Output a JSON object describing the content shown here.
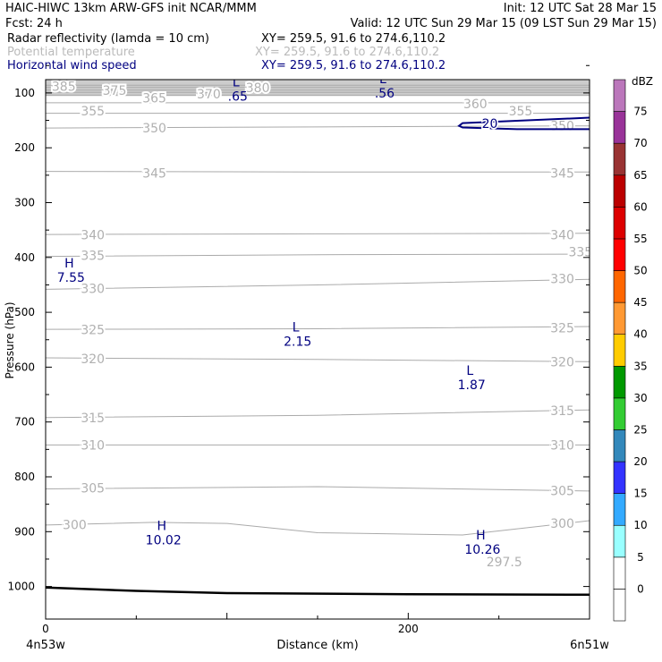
{
  "header": {
    "line1_left": "HAIC-HIWC 13km ARW-GFS init   NCAR/MMM",
    "line1_right": "Init: 12 UTC Sat 28 Mar 15",
    "line2_left": "Fcst:   24 h",
    "line2_right": "Valid: 12 UTC Sun 29 Mar 15 (09 LST Sun 29 Mar 15)",
    "field1_name": "Radar reflectivity (lamda = 10 cm)",
    "field1_xy": "XY= 259.5, 91.6 to 274.6,110.2",
    "field2_name": "Potential temperature",
    "field2_xy": "XY= 259.5, 91.6 to 274.6,110.2",
    "field3_name": "Horizontal wind speed",
    "field3_xy": "XY= 259.5, 91.6 to 274.6,110.2"
  },
  "colors": {
    "theta": "#aaaaaa",
    "theta_label": "#b0b0b0",
    "wind": "#000080",
    "ground": "#000000",
    "terrain_top": "#cccccc"
  },
  "chart_data": {
    "type": "cross-section",
    "xlabel": "Distance (km)",
    "ylabel": "Pressure (hPa)",
    "xlim": [
      0,
      300
    ],
    "ylim": [
      1045,
      0
    ],
    "x_ticks": [
      0,
      200
    ],
    "x_left_label": "4n53w",
    "x_right_label": "6n51w",
    "y_ticks": [
      100,
      200,
      300,
      400,
      500,
      600,
      700,
      800,
      900,
      1000
    ],
    "colorbar": {
      "unit": "dBZ",
      "levels": [
        0,
        5,
        10,
        15,
        20,
        25,
        30,
        35,
        40,
        45,
        50,
        55,
        60,
        65,
        70,
        75
      ],
      "colors": [
        "#ffffff",
        "#ffffff",
        "#99ffff",
        "#33aaff",
        "#3333ff",
        "#3388bb",
        "#33cc33",
        "#009900",
        "#ffcc00",
        "#ff9933",
        "#ff6600",
        "#ff0000",
        "#dd0000",
        "#bb0000",
        "#993333",
        "#993399",
        "#bb77bb"
      ]
    },
    "theta_contours": [
      {
        "theta": 385,
        "pts": [
          [
            0,
            86
          ],
          [
            300,
            86
          ]
        ]
      },
      {
        "theta": 380,
        "pts": [
          [
            0,
            90
          ],
          [
            300,
            90
          ]
        ]
      },
      {
        "theta": 375,
        "pts": [
          [
            0,
            95
          ],
          [
            300,
            95
          ]
        ]
      },
      {
        "theta": 370,
        "pts": [
          [
            0,
            99
          ],
          [
            300,
            99
          ]
        ]
      },
      {
        "theta": 365,
        "pts": [
          [
            0,
            104
          ],
          [
            300,
            104
          ]
        ]
      },
      {
        "theta": 360,
        "pts": [
          [
            0,
            118
          ],
          [
            300,
            118
          ]
        ]
      },
      {
        "theta": 355,
        "pts": [
          [
            0,
            137
          ],
          [
            300,
            137
          ]
        ]
      },
      {
        "theta": 350,
        "pts": [
          [
            0,
            164
          ],
          [
            150,
            162
          ],
          [
            300,
            160
          ]
        ]
      },
      {
        "theta": 345,
        "pts": [
          [
            0,
            243
          ],
          [
            150,
            244
          ],
          [
            300,
            244
          ]
        ]
      },
      {
        "theta": 340,
        "pts": [
          [
            0,
            358
          ],
          [
            150,
            357
          ],
          [
            300,
            356
          ]
        ]
      },
      {
        "theta": 335,
        "pts": [
          [
            0,
            398
          ],
          [
            150,
            395
          ],
          [
            300,
            394
          ]
        ]
      },
      {
        "theta": 330,
        "pts": [
          [
            0,
            458
          ],
          [
            150,
            450
          ],
          [
            300,
            440
          ]
        ]
      },
      {
        "theta": 325,
        "pts": [
          [
            0,
            531
          ],
          [
            150,
            530
          ],
          [
            300,
            526
          ]
        ]
      },
      {
        "theta": 320,
        "pts": [
          [
            0,
            583
          ],
          [
            150,
            586
          ],
          [
            300,
            590
          ]
        ]
      },
      {
        "theta": 315,
        "pts": [
          [
            0,
            692
          ],
          [
            150,
            688
          ],
          [
            300,
            678
          ]
        ]
      },
      {
        "theta": 310,
        "pts": [
          [
            0,
            742
          ],
          [
            150,
            742
          ],
          [
            300,
            742
          ]
        ]
      },
      {
        "theta": 305,
        "pts": [
          [
            0,
            822
          ],
          [
            150,
            818
          ],
          [
            300,
            826
          ]
        ]
      },
      {
        "theta": 300,
        "pts": [
          [
            0,
            888
          ],
          [
            60,
            883
          ],
          [
            100,
            885
          ],
          [
            150,
            902
          ],
          [
            230,
            906
          ],
          [
            300,
            880
          ]
        ]
      }
    ],
    "theta_labels": [
      {
        "text": "385",
        "x": 10,
        "y": 88
      },
      {
        "text": "375",
        "x": 38,
        "y": 95
      },
      {
        "text": "365",
        "x": 60,
        "y": 109
      },
      {
        "text": "370",
        "x": 90,
        "y": 102
      },
      {
        "text": "380",
        "x": 117,
        "y": 90
      },
      {
        "text": "360",
        "x": 237,
        "y": 120
      },
      {
        "text": "355",
        "x": 262,
        "y": 133
      },
      {
        "text": "355",
        "x": 26,
        "y": 133
      },
      {
        "text": "350",
        "x": 60,
        "y": 164
      },
      {
        "text": "350",
        "x": 285,
        "y": 160
      },
      {
        "text": "345",
        "x": 60,
        "y": 246
      },
      {
        "text": "345",
        "x": 285,
        "y": 246
      },
      {
        "text": "340",
        "x": 26,
        "y": 359
      },
      {
        "text": "340",
        "x": 285,
        "y": 359
      },
      {
        "text": "335",
        "x": 26,
        "y": 396
      },
      {
        "text": "335",
        "x": 295,
        "y": 390
      },
      {
        "text": "330",
        "x": 26,
        "y": 457
      },
      {
        "text": "330",
        "x": 285,
        "y": 439
      },
      {
        "text": "325",
        "x": 26,
        "y": 532
      },
      {
        "text": "325",
        "x": 285,
        "y": 528
      },
      {
        "text": "320",
        "x": 26,
        "y": 585
      },
      {
        "text": "320",
        "x": 285,
        "y": 590
      },
      {
        "text": "315",
        "x": 26,
        "y": 692
      },
      {
        "text": "315",
        "x": 285,
        "y": 679
      },
      {
        "text": "310",
        "x": 26,
        "y": 742
      },
      {
        "text": "310",
        "x": 285,
        "y": 742
      },
      {
        "text": "305",
        "x": 26,
        "y": 820
      },
      {
        "text": "305",
        "x": 285,
        "y": 825
      },
      {
        "text": "300",
        "x": 16,
        "y": 887
      },
      {
        "text": "300",
        "x": 285,
        "y": 885
      },
      {
        "text": "297.5",
        "x": 253,
        "y": 955
      }
    ],
    "wind_contours": [
      {
        "speed": 20,
        "pts": [
          [
            300,
            145
          ],
          [
            280,
            148
          ],
          [
            230,
            155
          ],
          [
            228,
            160
          ],
          [
            230,
            163
          ],
          [
            260,
            166
          ],
          [
            300,
            166
          ]
        ]
      }
    ],
    "wind_labels": [
      {
        "text": "20",
        "x": 245,
        "y": 156
      }
    ],
    "extrema": [
      {
        "type": "L",
        "value": ".65",
        "x": 105,
        "y": 88
      },
      {
        "type": "L",
        "value": ".56",
        "x": 186,
        "y": 82
      },
      {
        "type": "H",
        "value": "7.55",
        "x": 13,
        "y": 418
      },
      {
        "type": "L",
        "value": "2.15",
        "x": 138,
        "y": 535
      },
      {
        "type": "L",
        "value": "1.87",
        "x": 234,
        "y": 614
      },
      {
        "type": "H",
        "value": "10.02",
        "x": 64,
        "y": 897
      },
      {
        "type": "H",
        "value": "10.26",
        "x": 240,
        "y": 914
      }
    ],
    "ground": [
      [
        0,
        1002
      ],
      [
        50,
        1008
      ],
      [
        100,
        1012
      ],
      [
        200,
        1014
      ],
      [
        300,
        1015
      ]
    ],
    "top_fill_pressure": 86
  }
}
